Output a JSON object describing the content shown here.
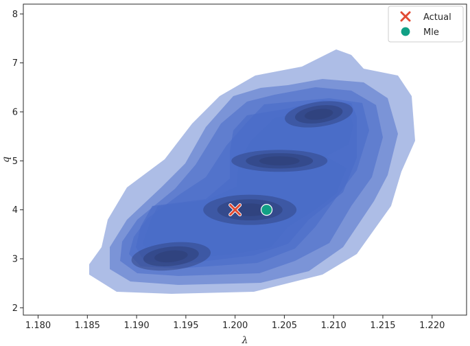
{
  "chart_data": {
    "type": "kde-contour",
    "xlabel": "λ",
    "ylabel": "q",
    "xlim": [
      1.1785,
      1.2235
    ],
    "ylim": [
      1.85,
      8.2
    ],
    "xticks": [
      1.18,
      1.185,
      1.19,
      1.195,
      1.2,
      1.205,
      1.21,
      1.215,
      1.22
    ],
    "xtick_labels": [
      "1.180",
      "1.185",
      "1.190",
      "1.195",
      "1.200",
      "1.205",
      "1.210",
      "1.215",
      "1.220"
    ],
    "yticks": [
      2,
      3,
      4,
      5,
      6,
      7,
      8
    ],
    "ytick_labels": [
      "2",
      "3",
      "4",
      "5",
      "6",
      "7",
      "8"
    ],
    "grid": false,
    "legend_position": "top-right",
    "density_color": "#4a6cc8",
    "density_modes": [
      {
        "x": 1.2015,
        "y": 4.0
      },
      {
        "x": 1.2045,
        "y": 5.0
      },
      {
        "x": 1.2085,
        "y": 5.95
      },
      {
        "x": 1.1935,
        "y": 3.05
      }
    ],
    "points": [
      {
        "name": "Actual",
        "x": 1.2,
        "y": 4.0,
        "marker": "x",
        "color": "#e24a33"
      },
      {
        "name": "Mle",
        "x": 1.2032,
        "y": 4.0,
        "marker": "o",
        "color": "#11a085"
      }
    ],
    "legend": [
      "Actual",
      "Mle"
    ]
  }
}
